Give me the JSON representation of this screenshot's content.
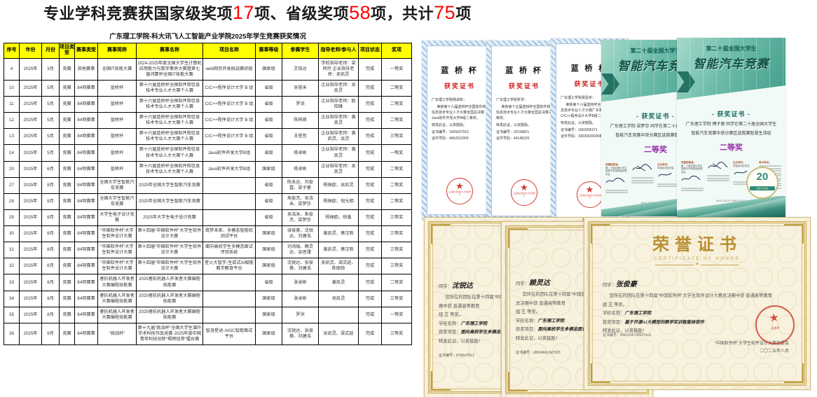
{
  "slide_title": {
    "part1": "专业学科竞赛获国家级奖项",
    "national_count": "17",
    "part2": "项、省级奖项",
    "provincial_count": "58",
    "part3": "项，共计",
    "total_count": "75",
    "part4": "项"
  },
  "table": {
    "title": "广东理工学院-科大讯飞人工智能产业学院2025年学生竞赛获奖情况",
    "headers": [
      "序号",
      "年份",
      "月份",
      "项目类型",
      "赛事类型",
      "赛事简称",
      "赛事名称",
      "项目名称",
      "赛事等级",
      "参赛学生",
      "指导老师/参与人",
      "项目状态",
      "奖项"
    ],
    "rows": [
      [
        "4",
        "2025年",
        "3月",
        "竞赛",
        "其他赛事",
        "全国IT技能大赛",
        "2024-2025年度全国大学生计算机应用能力与数字素养大赛暨第七届鸿蒙杯全国IT技能大赛",
        "web网页开发挑战赛初级",
        "国家级",
        "文铭达",
        "学校指导老师：梁同可  企业指导老师：吴凯灵",
        "完成",
        "一等奖"
      ],
      [
        "10",
        "2025年",
        "5月",
        "竞赛",
        "84项赛事",
        "蓝桥杯",
        "第十六届蓝桥杯全国软件和信息技术专业人才大赛个人赛",
        "C/C++程序设计大学 B 组",
        "省级",
        "吴恩禾",
        "企业指导老师：吴凯灵",
        "完成",
        "二等奖"
      ],
      [
        "11",
        "2025年",
        "5月",
        "竞赛",
        "84项赛事",
        "蓝桥杯",
        "第十六届蓝桥杯全国软件和信息技术专业人才大赛个人赛",
        "C/C++程序设计大学 B 组",
        "省级",
        "罗洪",
        "企业指导老师：欧阳锋",
        "完成",
        "二等奖"
      ],
      [
        "12",
        "2025年",
        "5月",
        "竞赛",
        "84项赛事",
        "蓝桥杯",
        "第十六届蓝桥杯全国软件和信息技术专业人才大赛个人赛",
        "C/C++程序设计大学 B 组",
        "省级",
        "陈梓原",
        "企业指导老师：黄凯灵",
        "完成",
        "二等奖"
      ],
      [
        "13",
        "2025年",
        "5月",
        "竞赛",
        "84项赛事",
        "蓝桥杯",
        "第十六届蓝桥杯全国软件和信息技术专业人才大赛个人赛",
        "C/C++程序设计大学 B 组",
        "省级",
        "王誉哲",
        "企业指导老师：黄凯灵、余灵",
        "完成",
        "三等奖"
      ],
      [
        "14",
        "2025年",
        "5月",
        "竞赛",
        "84项赛事",
        "蓝桥杯",
        "第十六届蓝桥杯全国软件和信息技术专业人才大赛个人赛",
        "Java软件开发大学B组",
        "省级",
        "杨卓彬",
        "企业指导老师：黄凯灵",
        "完成",
        "一等奖"
      ],
      [
        "20",
        "2025年",
        "6月",
        "竞赛",
        "84项赛事",
        "蓝桥杯",
        "第十六届蓝桥杯全国软件和信息技术专业人才大赛个人赛",
        "Java软件开发大学B组",
        "国家级",
        "杨卓彬",
        "企业指导老师：吴凯灵",
        "完成",
        "二等奖"
      ],
      [
        "27",
        "2025年",
        "8月",
        "竞赛",
        "84项赛事",
        "全国大学生智能汽车竞赛",
        "2025年全国大学生智能汽车竞赛",
        "",
        "省级",
        "陈永达、刘俊霆、梁子睿",
        "杨振欧、吴凯灵",
        "完成",
        "二等奖"
      ],
      [
        "28",
        "2025年",
        "8月",
        "竞赛",
        "84项赛事",
        "全国大学生智能汽车竞赛",
        "2025年全国大学生智能汽车竞赛",
        "",
        "省级",
        "朱俊杰、吴浩禾、梁梦莎",
        "杨振欧、倪元相",
        "完成",
        "二等奖"
      ],
      [
        "29",
        "2025年",
        "8月",
        "竞赛",
        "84项赛事",
        "大学生电子设计竞赛",
        "2025年大学生电子设计竞赛",
        "",
        "省级",
        "吴浩禾、朱俊杰、梁梦莎",
        "杨振欧、徐鑫",
        "完成",
        "三等奖"
      ],
      [
        "30",
        "2025年",
        "8月",
        "竞赛",
        "84项赛事",
        "“中国软件杯”大学生软件设计大赛",
        "第十四届“中国软件杯”大学生软件设计大赛",
        "筑梦未来，多模态智能软测试平台",
        "国家级",
        "张俊豪、沈锐达、刘建浩",
        "黄凯灵、蔡汉轶",
        "完成",
        "三等奖"
      ],
      [
        "31",
        "2025年",
        "8月",
        "竞赛",
        "84项赛事",
        "“中国软件杯”大学生软件设计大赛",
        "第十四届“中国软件杯”大学生软件设计大赛",
        "面向高校学生多模态面试评测系统",
        "国家级",
        "刘鸿瑞、赖灵达、余思瑾",
        "黄凯灵、蔡汉轶",
        "完成",
        "三等奖"
      ],
      [
        "32",
        "2025年",
        "8月",
        "竞赛",
        "84项赛事",
        "“中国软件杯”大学生软件设计大赛",
        "第十四届“中国软件杯”大学生软件设计大赛",
        "星火大智学-生成式AI赋能教学教育平台",
        "国家级",
        "沈锐达、张俊豪、刘建浩",
        "吴凯灵、梁式廷、陈丽琼",
        "完成",
        "三等奖"
      ],
      [
        "33",
        "2025年",
        "8月",
        "竞赛",
        "84项赛事",
        "睿抗机器人开发者大赛编程技能赛",
        "2025睿抗机器人开发者大赛编程技能赛",
        "",
        "省级",
        "张卓彬",
        "黄凯灵",
        "完成",
        "二等奖"
      ],
      [
        "34",
        "2025年",
        "8月",
        "竞赛",
        "84项赛事",
        "睿抗机器人开发者大赛编程技能赛",
        "2025睿抗机器人开发者大赛编程技能赛",
        "",
        "国家级",
        "张卓彬",
        "吴凯灵",
        "完成",
        "三等奖"
      ],
      [
        "35",
        "2025年",
        "8月",
        "竞赛",
        "84项赛事",
        "睿抗机器人开发者大赛编程技能赛",
        "2025睿抗机器人开发者大赛编程技能赛",
        "",
        "国家级",
        "罗洪",
        "",
        "完成",
        "一等奖"
      ],
      [
        "36",
        "2025年",
        "9月",
        "竞赛",
        "84项赛事",
        "“挑战杯”",
        "第十九届“挑战杯”全国大学生课外学术科技作品竞赛·2025年度中国青年科技创新“揭榜挂帅”擂台赛",
        "智涯星途·AIGC智能面试平台",
        "国家级",
        "沈锐达、张俊豪、刘建浩",
        "吴凯灵、梁式廷",
        "完成",
        "三等奖"
      ]
    ]
  },
  "certificates": {
    "lanqiao": [
      {
        "title": "蓝 桥 杯",
        "subtitle": "获奖证书",
        "recipient": "广东理工学院杨卓彬：",
        "body": "荣获第十六届蓝桥杯全国软件和信息技术专业人才大赛全国总决赛Java软件开发大学B组二等奖。",
        "issue": "特发此证，以资鼓励。",
        "cert_no": "证书编号：1605027010",
        "id_no": "证件号码：4452912005",
        "seal": "工业和信息化部人才交流中心"
      },
      {
        "title": "蓝 桥 杯",
        "subtitle": "获奖证书",
        "recipient": "广东理工学院罗洪：",
        "body": "荣获第十五届蓝桥杯全国软件和信息技术专业人才大赛全国总决赛三等奖。",
        "issue": "特发此证，以资鼓励。",
        "cert_no": "证书编号：02158821",
        "id_no": "证件号码：44148120",
        "seal": "工业和信息化部人才交流中心"
      },
      {
        "title": "蓝 桥 杯",
        "subtitle": "获奖证书",
        "recipient": "广东理工学院吴恩禾：",
        "body": "荣获第十六届蓝桥杯全国软件和信息技术专业人才大赛广东赛区C/C++程序设计大学B组二等奖。",
        "issue": "特发此证，以资鼓励。",
        "cert_no": "证书编号：1662006271",
        "id_no": "证件号码：330304200408",
        "seal": "工业和信息化部人才交流中心"
      }
    ],
    "smartcar": [
      {
        "header_small": "第二十届全国大学生",
        "header_big": "智能汽车竞赛",
        "subtitle": "- 获奖证书 -",
        "line1": "广东理工学院 梁梦莎 同学在第二十届全国大学生",
        "line2": "智能汽车竞赛中获分赛区选拔赛智慧生活组",
        "award": "二等奖",
        "committee_label": "竞赛组委会：",
        "committee": "第二十届全国大学生智能汽车竞赛组织委员会",
        "host_label": "主办单位：",
        "host": "中国自动化学会",
        "organizer_label": "承办单位：",
        "cert_no": "WSC2025-3YS4296",
        "badge": "20"
      },
      {
        "header_small": "第二十届全国大学生",
        "header_big": "智能汽车竞赛",
        "subtitle": "- 获奖证书 -",
        "line1": "广东理工学院 傅子豪 同学在第二十届全国大学生",
        "line2": "智能汽车竞赛中获分赛区选拔赛智慧生活组",
        "award": "二等奖",
        "committee_label": "竞赛组委会：",
        "committee": "第二十届全国大学生智能汽车竞赛组织委员会",
        "host_label": "主办单位：",
        "host": "中国自动化学会",
        "organizer_label": "承办单位：",
        "cert_no": "WSC2025-9WS2022",
        "badge": "20"
      }
    ],
    "honor": [
      {
        "name_label": "同学：",
        "name": "沈锐达",
        "para": "您所在的团队在第十四届“中国软件杯”大学生软件设计大赛总决赛中获 普通高等教育",
        "grade_pre": "组",
        "grade": "三",
        "grade_post": "等奖。",
        "school_label": "学校名称：",
        "school": "广东理工学院",
        "project_label": "获奖项目：",
        "project": "面向高校学生多模态面试评测系统",
        "issue": "特发此证，以资鼓励！",
        "cert_no": "证书编号：87d6e7f2c1"
      },
      {
        "name_label": "同学：",
        "name": "赖灵达",
        "para": "您所在的团队在第十四届“中国软件杯”大学生软件设计大赛总决赛中获 普通高等教育",
        "grade_pre": "组",
        "grade": "三",
        "grade_post": "等奖。",
        "school_label": "学校名称：",
        "school": "广东理工学院",
        "project_label": "获奖项目：",
        "project": "面向高校学生多模态面试评测系统",
        "issue": "特发此证，以资鼓励！",
        "cert_no": "证书编号：d993466c9d7025"
      },
      {
        "title": "荣誉证书",
        "title_en": "CERTIFICATE OF HONOR",
        "name_label": "同学：",
        "name": "张俊豪",
        "para": "您所在的团队在第十四届“中国软件杯”大学生软件设计大赛总决赛中获 普通高等教育",
        "grade_pre": "组",
        "grade": "三",
        "grade_post": "等奖。",
        "school_label": "学校名称：",
        "school": "广东理工学院",
        "project_label": "获奖项目：",
        "project": "基于开源AI大模型的教学实训智能体软件",
        "issue": "特发此证，以资鼓励！",
        "org": "“中国软件杯”大学生软件设计大赛组委会",
        "date": "二〇二五年八月",
        "cert_no": "证书编号：40b16367d9937ecb",
        "seal": "组委会"
      }
    ]
  },
  "colors": {
    "title_red": "#ff0000",
    "table_header_yellow": "#ffff00",
    "lanqiao_red": "#cc2222",
    "smartcar_teal": "#1a6e62",
    "award_purple": "#9b30b0",
    "honor_gold": "#bb8f33"
  }
}
